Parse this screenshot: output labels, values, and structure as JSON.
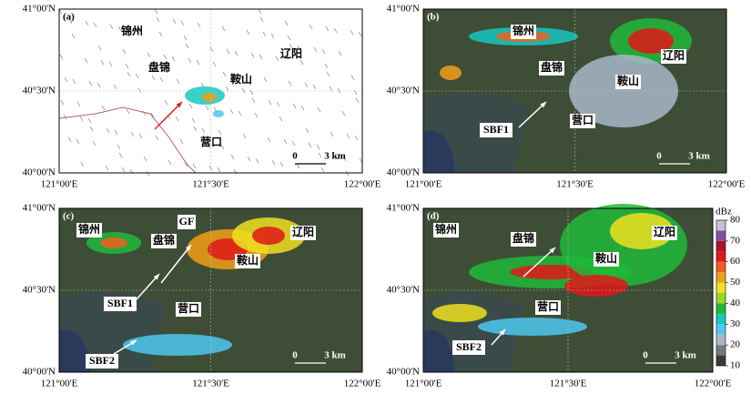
{
  "panels": [
    {
      "label": "(a)",
      "lat_labels": [
        "41°00'N",
        "40°30'N",
        "40°00'N"
      ],
      "lon_labels": [
        "121°00'E",
        "121°30'E",
        "122°00'E"
      ],
      "places": [
        "锦州",
        "盘锦",
        "鞍山",
        "辽阳",
        "营口"
      ],
      "scale": [
        "0",
        "3 km"
      ]
    },
    {
      "label": "(b)",
      "lat_labels": [
        "41°00'N",
        "40°30'N",
        "40°00'N"
      ],
      "lon_labels": [
        "121°00'E",
        "121°30'E",
        "122°00'E"
      ],
      "places": [
        "锦州",
        "盘锦",
        "鞍山",
        "辽阳",
        "营口",
        "SBF1"
      ],
      "scale": [
        "0",
        "3 km"
      ]
    },
    {
      "label": "(c)",
      "lat_labels": [
        "41°00'N",
        "40°30'N",
        "40°00'N"
      ],
      "lon_labels": [
        "121°00'E",
        "121°30'E",
        "122°00'E"
      ],
      "places": [
        "锦州",
        "盘锦",
        "GF",
        "鞍山",
        "辽阳",
        "SBF1",
        "营口",
        "SBF2"
      ],
      "scale": [
        "0",
        "3 km"
      ]
    },
    {
      "label": "(d)",
      "lat_labels": [
        "41°00'N",
        "40°30'N",
        "40°00'N"
      ],
      "lon_labels": [
        "121°00'E",
        "121°30'E",
        "122°00'E"
      ],
      "places": [
        "锦州",
        "盘锦",
        "鞍山",
        "辽阳",
        "营口",
        "SBF2"
      ],
      "scale": [
        "0",
        "3 km"
      ]
    }
  ],
  "colorbar": {
    "title": "dBz",
    "ticks": [
      80,
      70,
      60,
      50,
      40,
      30,
      20,
      10
    ],
    "colors": [
      "#3a3a3a",
      "#7a7a7a",
      "#a8b8c8",
      "#4ec8f0",
      "#18c8c0",
      "#20b838",
      "#98d820",
      "#f0e020",
      "#f0a018",
      "#f06020",
      "#e01818",
      "#b01030",
      "#8050a0",
      "#c8c0d8"
    ]
  }
}
